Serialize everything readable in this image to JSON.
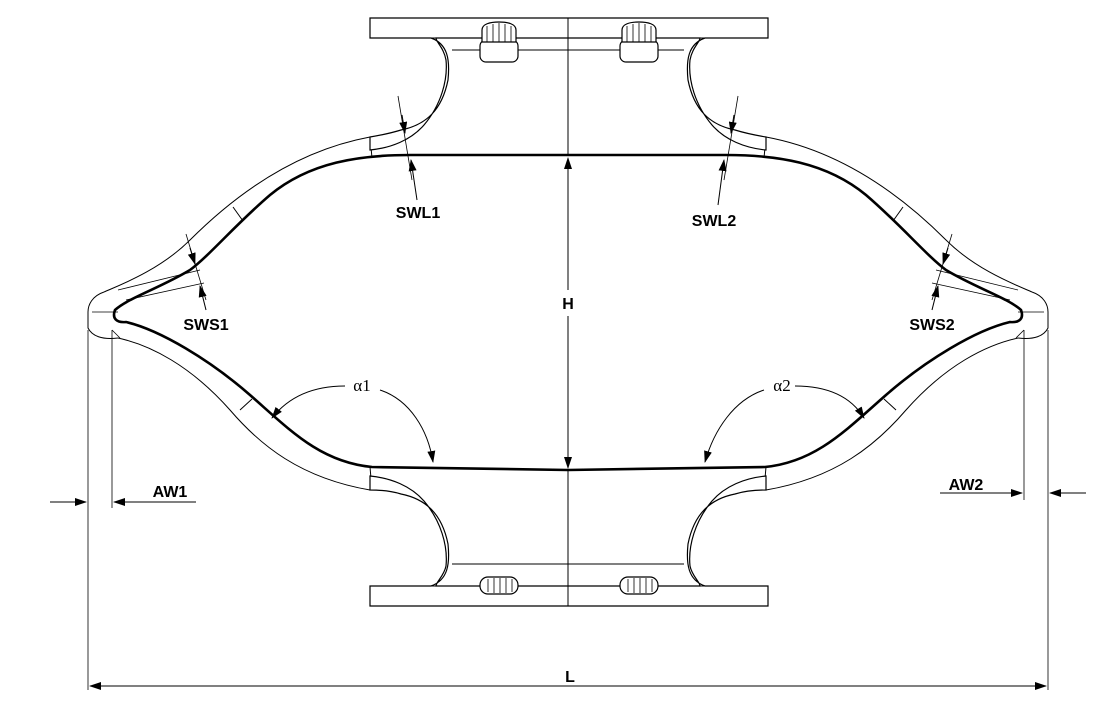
{
  "labels": {
    "swl1": "SWL1",
    "swl2": "SWL2",
    "sws1": "SWS1",
    "sws2": "SWS2",
    "h": "H",
    "alpha1": "α1",
    "alpha2": "α2",
    "aw1": "AW1",
    "aw2": "AW2",
    "l": "L"
  }
}
